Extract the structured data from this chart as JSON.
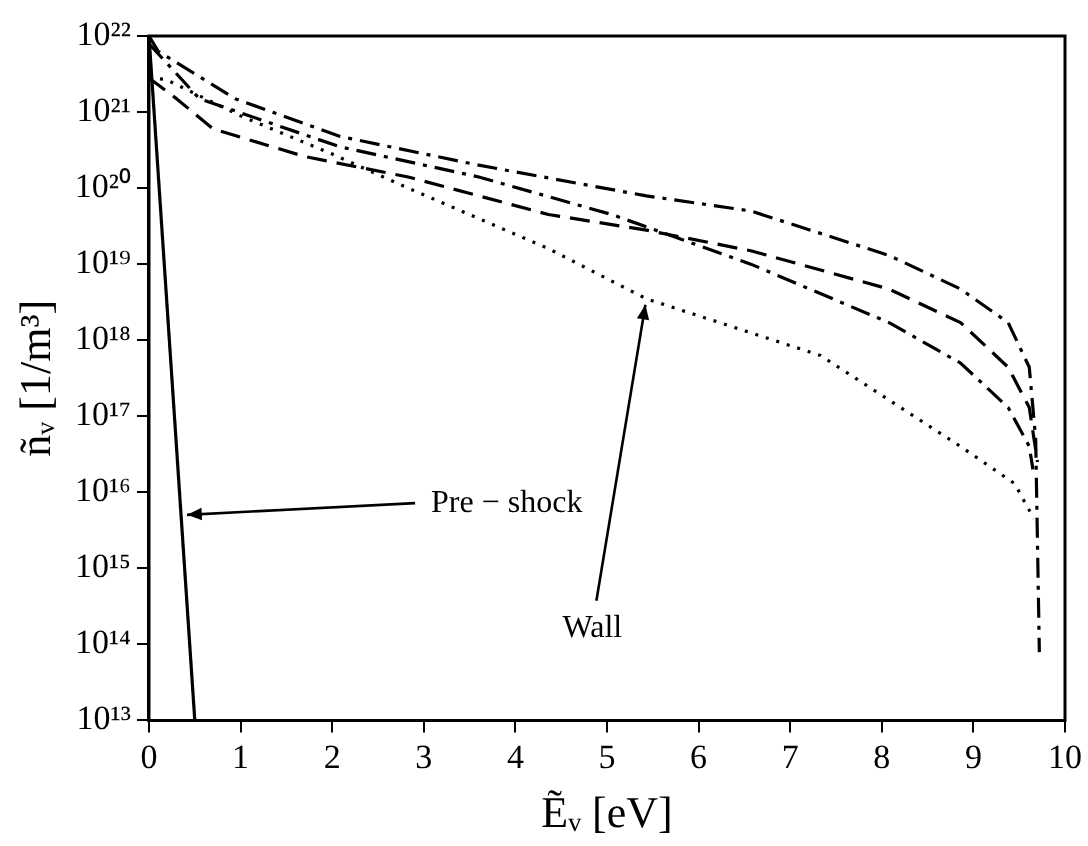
{
  "chart_data": {
    "type": "line",
    "xlabel": "Ẽᵥ [eV]",
    "ylabel": "ñᵥ [1/m³]",
    "log": "y",
    "grid": false,
    "legend": false,
    "marker": "none",
    "xlim": [
      0,
      10
    ],
    "xticks": [
      0,
      1,
      2,
      3,
      4,
      5,
      6,
      7,
      8,
      9,
      10
    ],
    "ylim": [
      10000000000000.0,
      1e+22
    ],
    "yticks": [
      {
        "value": 10000000000000.0,
        "label": "10¹³"
      },
      {
        "value": 100000000000000.0,
        "label": "10¹⁴"
      },
      {
        "value": 1000000000000000.0,
        "label": "10¹⁵"
      },
      {
        "value": 1e+16,
        "label": "10¹⁶"
      },
      {
        "value": 1e+17,
        "label": "10¹⁷"
      },
      {
        "value": 1e+18,
        "label": "10¹⁸"
      },
      {
        "value": 1e+19,
        "label": "10¹⁹"
      },
      {
        "value": 1e+20,
        "label": "10²⁰"
      },
      {
        "value": 1e+21,
        "label": "10²¹"
      },
      {
        "value": 1e+22,
        "label": "10²²"
      }
    ],
    "series": [
      {
        "color": "#000000",
        "line_style": "solid",
        "x": [
          0,
          0.5
        ],
        "values": [
          1e+22,
          10000000000000.0
        ]
      },
      {
        "color": "#000000",
        "line_style": "dashdot",
        "x": [
          0,
          0.1,
          0.94,
          2.08,
          3.6,
          5.43,
          6.57,
          8.08,
          8.86,
          9.38,
          9.61,
          9.68,
          9.72
        ],
        "values": [
          1e+22,
          6.3e+21,
          1.5e+21,
          4.8e+20,
          2e+20,
          7.9e+19,
          5e+19,
          1.3e+19,
          4.7e+18,
          1.7e+18,
          4.4e+17,
          5e+16,
          79000000000000.0
        ]
      },
      {
        "color": "#000000",
        "line_style": "dashdot",
        "x": [
          0,
          0.55,
          2.08,
          3.6,
          5.05,
          6.57,
          8.08,
          8.86,
          9.38,
          9.61,
          9.65
        ],
        "values": [
          7.9e+21,
          1.5e+21,
          3.5e+20,
          1.4e+20,
          4.5e+19,
          1e+19,
          1.7e+18,
          5e+17,
          1.3e+17,
          4e+16,
          2e+16
        ]
      },
      {
        "color": "#000000",
        "line_style": "dashed",
        "x": [
          0,
          0.3,
          0.7,
          1.7,
          2.83,
          4.36,
          5.43,
          6.57,
          8.08,
          8.86,
          9.38,
          9.61,
          9.7
        ],
        "values": [
          2.8e+21,
          1.5e+21,
          6e+20,
          2.6e+20,
          1.4e+20,
          4.5e+19,
          2.8e+19,
          1.5e+19,
          4.7e+18,
          1.7e+18,
          4.4e+17,
          1.3e+17,
          2.5e+16
        ]
      },
      {
        "color": "#000000",
        "line_style": "dotted",
        "x": [
          0,
          0.18,
          1,
          2,
          2.83,
          4.36,
          5.43,
          7.33,
          8.86,
          9.45,
          9.66
        ],
        "values": [
          2.8e+21,
          2.7e+21,
          8.9e+20,
          2.8e+20,
          1e+20,
          1.6e+19,
          3.5e+18,
          6.3e+17,
          4e+16,
          1.3e+16,
          4500000000000000.0
        ]
      }
    ],
    "annotations": [
      {
        "text": "Wall",
        "x": 5.43,
        "y": 3.5e+18
      },
      {
        "text": "Pre − shock",
        "x": 0.35,
        "y": 5000000000000000.0
      }
    ]
  }
}
